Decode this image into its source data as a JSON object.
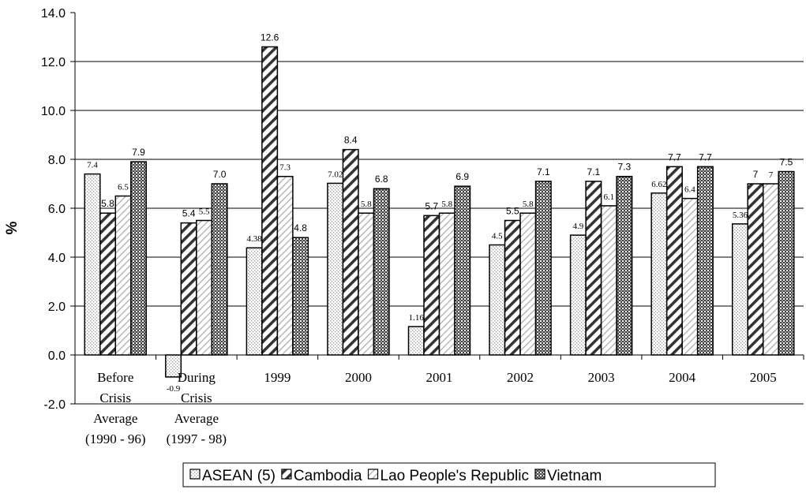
{
  "chart_data": {
    "type": "bar",
    "title": "",
    "xlabel": "",
    "ylabel": "%",
    "ylim": [
      -2.0,
      14.0
    ],
    "yticks": [
      "14.0",
      "12.0",
      "10.0",
      "8.0",
      "6.0",
      "4.0",
      "2.0",
      "0.0",
      "-2.0"
    ],
    "grid": true,
    "legend_position": "bottom",
    "categories": [
      [
        "Before",
        "Crisis",
        "Average",
        "(1990 - 96)"
      ],
      [
        "During",
        "Crisis",
        "Average",
        "(1997 - 98)"
      ],
      [
        "1999"
      ],
      [
        "2000"
      ],
      [
        "2001"
      ],
      [
        "2002"
      ],
      [
        "2003"
      ],
      [
        "2004"
      ],
      [
        "2005"
      ]
    ],
    "series": [
      {
        "name": "ASEAN (5)",
        "pattern": "dots",
        "values": [
          7.4,
          -0.9,
          4.38,
          7.02,
          1.16,
          4.5,
          4.9,
          6.62,
          5.36
        ],
        "labels": [
          "7.4",
          "-0.9",
          "4.38",
          "7.02",
          "1.16",
          "4.5",
          "4.9",
          "6.62",
          "5.36"
        ]
      },
      {
        "name": "Cambodia",
        "pattern": "diagonal",
        "values": [
          5.8,
          5.4,
          12.6,
          8.4,
          5.7,
          5.5,
          7.1,
          7.7,
          7.0
        ],
        "labels": [
          "5.8",
          "5.4",
          "12.6",
          "8.4",
          "5.7",
          "5.5",
          "7.1",
          "7.7",
          "7"
        ]
      },
      {
        "name": "Lao People's Republic",
        "pattern": "light-diagonal",
        "values": [
          6.5,
          5.5,
          7.3,
          5.8,
          5.8,
          5.8,
          6.1,
          6.4,
          7.0
        ],
        "labels": [
          "6.5",
          "5.5",
          "7.3",
          "5.8",
          "5.8",
          "5.8",
          "6.1",
          "6.4",
          "7"
        ]
      },
      {
        "name": "Vietnam",
        "pattern": "checker",
        "values": [
          7.9,
          7.0,
          4.8,
          6.8,
          6.9,
          7.1,
          7.3,
          7.7,
          7.5
        ],
        "labels": [
          "7.9",
          "7.0",
          "4.8",
          "6.8",
          "6.9",
          "7.1",
          "7.3",
          "7.7",
          "7.5"
        ]
      }
    ],
    "colors": {
      "axis": "#000000",
      "grid": "#000000",
      "bar_stroke": "#000000",
      "dots": "#9a9a9a",
      "checker": "#555555"
    }
  }
}
